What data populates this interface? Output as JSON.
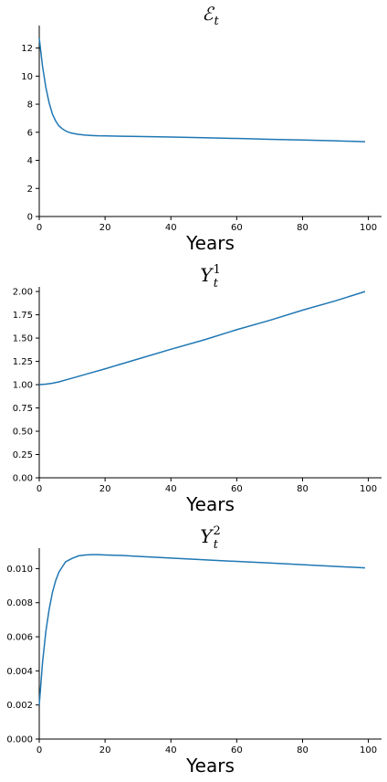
{
  "chart_data": [
    {
      "type": "line",
      "title": "ℰ",
      "title_sub": "t",
      "title_sup": "",
      "xlabel": "Years",
      "xlim": [
        0,
        104
      ],
      "ylim": [
        0,
        13.6
      ],
      "xticks": [
        0,
        20,
        40,
        60,
        80,
        100
      ],
      "yticks": [
        0,
        2,
        4,
        6,
        8,
        10,
        12
      ],
      "ytick_labels": [
        "0",
        "2",
        "4",
        "6",
        "8",
        "10",
        "12"
      ],
      "line_color": "#1f77b4",
      "series": [
        {
          "x": [
            0,
            1,
            2,
            3,
            4,
            5,
            6,
            7,
            8,
            9,
            10,
            12,
            14,
            16,
            18,
            20,
            25,
            30,
            40,
            50,
            60,
            70,
            80,
            90,
            99
          ],
          "y": [
            12.7,
            10.7,
            9.2,
            8.1,
            7.3,
            6.8,
            6.45,
            6.25,
            6.1,
            6.0,
            5.93,
            5.85,
            5.8,
            5.77,
            5.75,
            5.74,
            5.72,
            5.7,
            5.66,
            5.61,
            5.56,
            5.5,
            5.45,
            5.39,
            5.33
          ]
        }
      ]
    },
    {
      "type": "line",
      "title": "Y",
      "title_sub": "t",
      "title_sup": "1",
      "xlabel": "Years",
      "xlim": [
        0,
        104
      ],
      "ylim": [
        0,
        2.05
      ],
      "xticks": [
        0,
        20,
        40,
        60,
        80,
        100
      ],
      "yticks": [
        0,
        0.25,
        0.5,
        0.75,
        1.0,
        1.25,
        1.5,
        1.75,
        2.0
      ],
      "ytick_labels": [
        "0.00",
        "0.25",
        "0.50",
        "0.75",
        "1.00",
        "1.25",
        "1.50",
        "1.75",
        "2.00"
      ],
      "line_color": "#1f77b4",
      "series": [
        {
          "x": [
            0,
            2,
            4,
            6,
            8,
            10,
            15,
            20,
            30,
            40,
            50,
            60,
            70,
            80,
            90,
            99
          ],
          "y": [
            1.0,
            1.005,
            1.015,
            1.03,
            1.05,
            1.07,
            1.12,
            1.17,
            1.275,
            1.38,
            1.48,
            1.59,
            1.69,
            1.8,
            1.9,
            2.0
          ]
        }
      ]
    },
    {
      "type": "line",
      "title": "Y",
      "title_sub": "t",
      "title_sup": "2",
      "xlabel": "Years",
      "xlim": [
        0,
        104
      ],
      "ylim": [
        0,
        0.0112
      ],
      "xticks": [
        0,
        20,
        40,
        60,
        80,
        100
      ],
      "yticks": [
        0,
        0.002,
        0.004,
        0.006,
        0.008,
        0.01
      ],
      "ytick_labels": [
        "0.000",
        "0.002",
        "0.004",
        "0.006",
        "0.008",
        "0.010"
      ],
      "line_color": "#1f77b4",
      "series": [
        {
          "x": [
            0,
            1,
            2,
            3,
            4,
            5,
            6,
            7,
            8,
            9,
            10,
            12,
            14,
            16,
            18,
            20,
            25,
            30,
            40,
            50,
            60,
            70,
            80,
            90,
            99
          ],
          "y": [
            0.002,
            0.0045,
            0.0063,
            0.0076,
            0.0086,
            0.0093,
            0.0098,
            0.0101,
            0.0104,
            0.0105,
            0.0106,
            0.01075,
            0.0108,
            0.01082,
            0.01082,
            0.0108,
            0.01077,
            0.01072,
            0.01062,
            0.01052,
            0.01042,
            0.01033,
            0.01023,
            0.01013,
            0.01004
          ]
        }
      ]
    }
  ]
}
